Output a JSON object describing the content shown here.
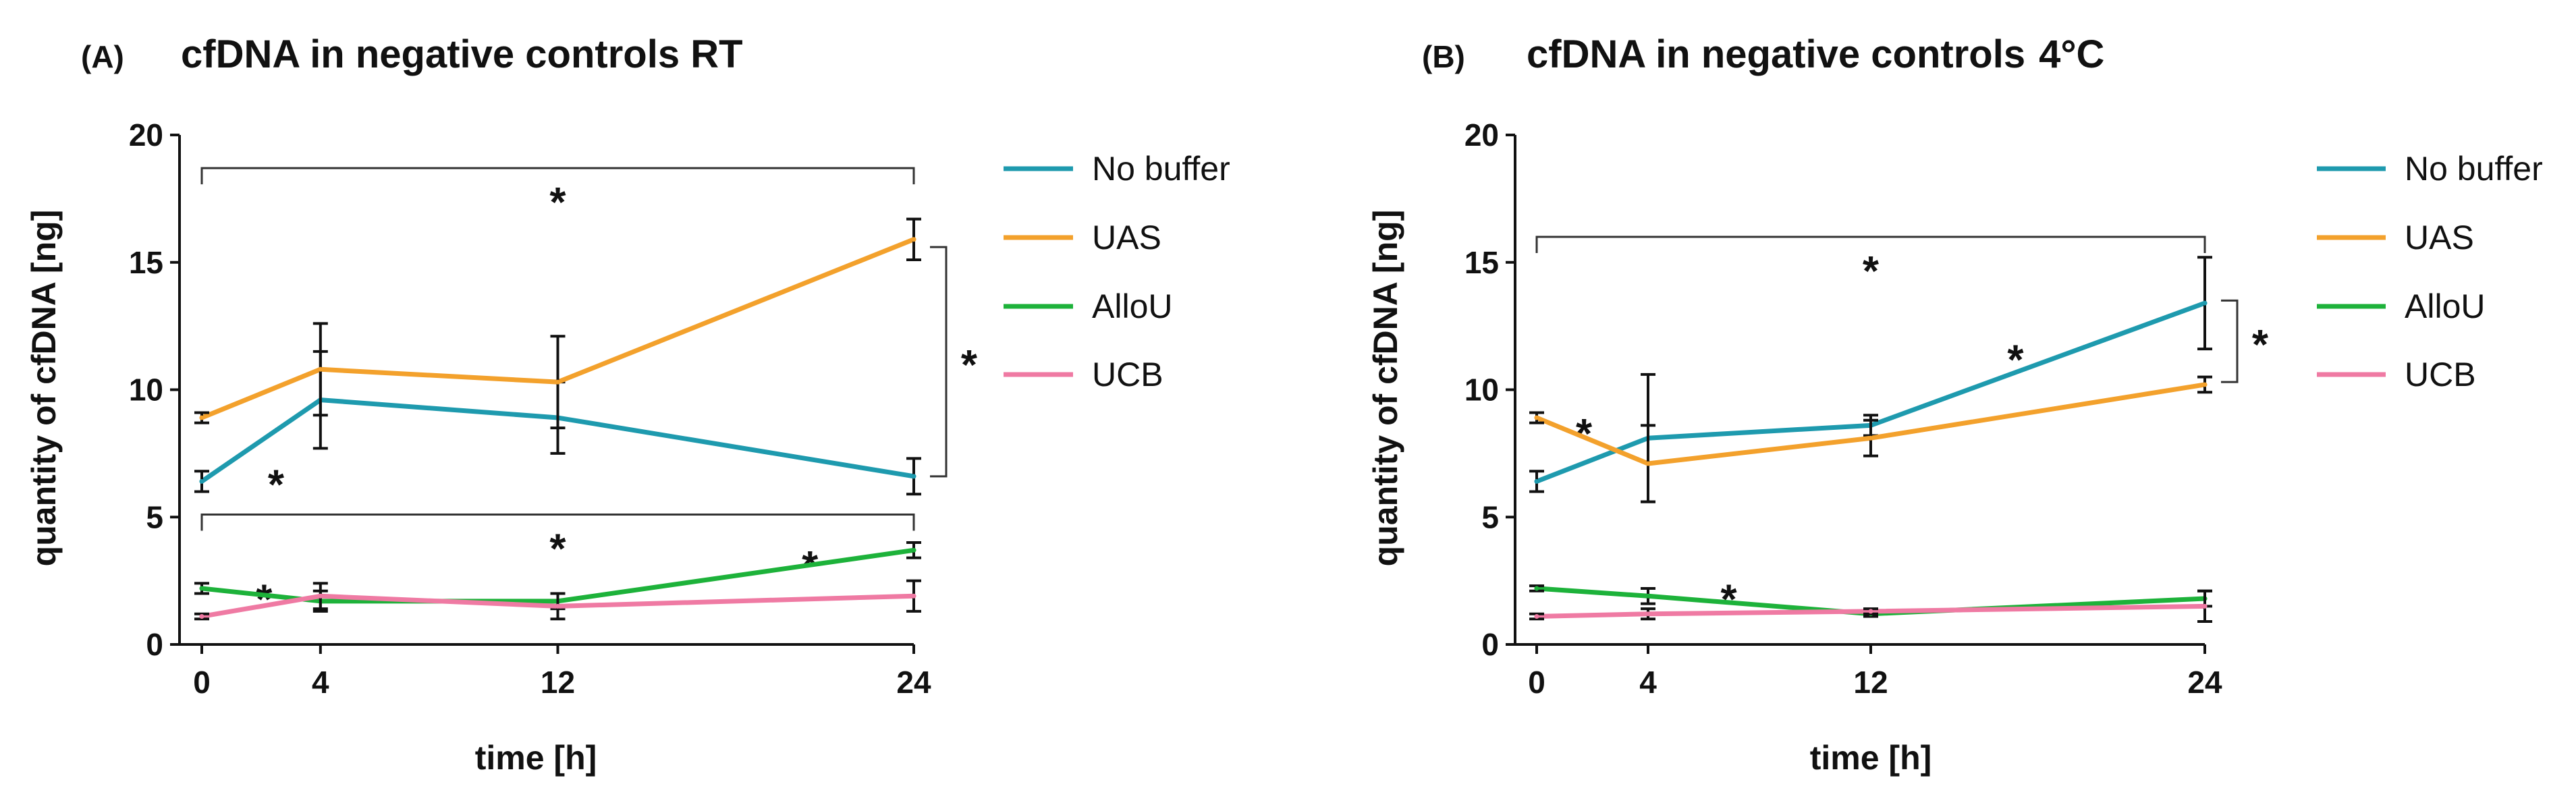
{
  "chart_data": [
    {
      "type": "line",
      "panel_label": "(A)",
      "title": "cfDNA in negative controls RT",
      "xlabel": "time [h]",
      "ylabel": "quantity of cfDNA [ng]",
      "x": [
        0,
        4,
        12,
        24
      ],
      "x_ticks": [
        "0",
        "4",
        "12",
        "24"
      ],
      "y_ticks": [
        "0",
        "5",
        "10",
        "15",
        "20"
      ],
      "xlim": [
        0,
        24
      ],
      "ylim": [
        0,
        20
      ],
      "legend_position": "right",
      "series": [
        {
          "name": "No buffer",
          "color": "#1E9AAE",
          "values": [
            6.4,
            9.6,
            8.9,
            6.6
          ],
          "errors": [
            0.4,
            1.9,
            1.4,
            0.7
          ]
        },
        {
          "name": "UAS",
          "color": "#F3A12C",
          "values": [
            8.9,
            10.8,
            10.3,
            15.9
          ],
          "errors": [
            0.2,
            1.8,
            1.8,
            0.8
          ]
        },
        {
          "name": "AlloU",
          "color": "#1DB23A",
          "values": [
            2.2,
            1.7,
            1.7,
            3.7
          ],
          "errors": [
            0.2,
            0.4,
            0.3,
            0.3
          ]
        },
        {
          "name": "UCB",
          "color": "#EF7AA3",
          "values": [
            1.1,
            1.9,
            1.5,
            1.9
          ],
          "errors": [
            0.1,
            0.5,
            0.5,
            0.6
          ]
        }
      ],
      "annotations": [
        {
          "kind": "bracket-horizontal",
          "x_from": 0,
          "x_to": 24,
          "y": 18.7,
          "label": "*"
        },
        {
          "kind": "bracket-horizontal",
          "x_from": 0,
          "x_to": 24,
          "y": 5.1,
          "label": "*"
        },
        {
          "kind": "bracket-vertical",
          "x": 24,
          "y_from": 6.6,
          "y_to": 15.6,
          "label": "*"
        },
        {
          "kind": "star",
          "x": 2.5,
          "y": 6.4,
          "label": "*"
        },
        {
          "kind": "star",
          "x": 2.1,
          "y": 1.9,
          "label": "*"
        },
        {
          "kind": "star",
          "x": 20.5,
          "y": 3.2,
          "label": "*"
        }
      ]
    },
    {
      "type": "line",
      "panel_label": "(B)",
      "title": "cfDNA in negative controls",
      "title_suffix": "4°C",
      "xlabel": "time [h]",
      "ylabel": "quantity of cfDNA [ng]",
      "x": [
        0,
        4,
        12,
        24
      ],
      "x_ticks": [
        "0",
        "4",
        "12",
        "24"
      ],
      "y_ticks": [
        "0",
        "5",
        "10",
        "15",
        "20"
      ],
      "xlim": [
        0,
        24
      ],
      "ylim": [
        0,
        20
      ],
      "legend_position": "right",
      "series": [
        {
          "name": "No buffer",
          "color": "#1E9AAE",
          "values": [
            6.4,
            8.1,
            8.6,
            13.4
          ],
          "errors": [
            0.4,
            2.5,
            0.4,
            1.8
          ]
        },
        {
          "name": "UAS",
          "color": "#F3A12C",
          "values": [
            8.9,
            7.1,
            8.1,
            10.2
          ],
          "errors": [
            0.2,
            1.5,
            0.7,
            0.3
          ]
        },
        {
          "name": "AlloU",
          "color": "#1DB23A",
          "values": [
            2.2,
            1.9,
            1.2,
            1.8
          ],
          "errors": [
            0.1,
            0.3,
            0.1,
            0.3
          ]
        },
        {
          "name": "UCB",
          "color": "#EF7AA3",
          "values": [
            1.1,
            1.2,
            1.3,
            1.5
          ],
          "errors": [
            0.1,
            0.2,
            0.1,
            0.6
          ]
        }
      ],
      "annotations": [
        {
          "kind": "bracket-horizontal",
          "x_from": 0,
          "x_to": 24,
          "y": 16.0,
          "label": "*"
        },
        {
          "kind": "bracket-vertical",
          "x": 24,
          "y_from": 10.3,
          "y_to": 13.5,
          "label": "*"
        },
        {
          "kind": "star",
          "x": 1.7,
          "y": 8.4,
          "label": "*"
        },
        {
          "kind": "star",
          "x": 17.2,
          "y": 11.3,
          "label": "*"
        },
        {
          "kind": "star",
          "x": 6.9,
          "y": 1.9,
          "label": "*"
        }
      ]
    }
  ]
}
